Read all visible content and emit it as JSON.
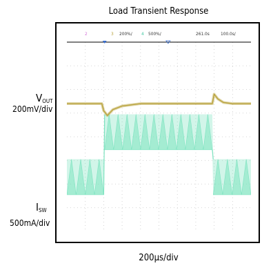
{
  "chart_data": {
    "type": "line",
    "title": "Load Transient Response",
    "xlabel": "200µs/div",
    "channel_header": {
      "ch2": "2",
      "ch3": "3",
      "ch3_scale": "200%/",
      "ch4": "4",
      "ch4_scale": "500%/",
      "time": "261.0s",
      "timebase": "100.0s/"
    },
    "y_labels": [
      {
        "name": "V",
        "sub": "OUT",
        "scale": "200mV/div"
      },
      {
        "name": "I",
        "sub": "SW",
        "scale": "500mA/div"
      }
    ],
    "divisions": {
      "x": 10,
      "y": 8
    },
    "series": [
      {
        "name": "VOUT",
        "color": "#b8a23c",
        "x": [
          0,
          1.9,
          2.0,
          2.2,
          2.5,
          3.0,
          3.5,
          4.0,
          5.0,
          6.0,
          7.0,
          7.9,
          8.0,
          8.2,
          8.5,
          9.0,
          10
        ],
        "y": [
          5.4,
          5.4,
          5.1,
          4.9,
          5.15,
          5.3,
          5.35,
          5.4,
          5.4,
          5.4,
          5.4,
          5.4,
          5.8,
          5.6,
          5.45,
          5.4,
          5.4
        ]
      },
      {
        "name": "ISW",
        "color": "#7de3c0",
        "x": [
          0,
          2.0,
          2.05,
          7.9,
          7.95,
          10
        ],
        "y": [
          2.3,
          2.3,
          4.2,
          4.2,
          2.3,
          2.3
        ],
        "ripple_pp": 1.5
      }
    ]
  }
}
